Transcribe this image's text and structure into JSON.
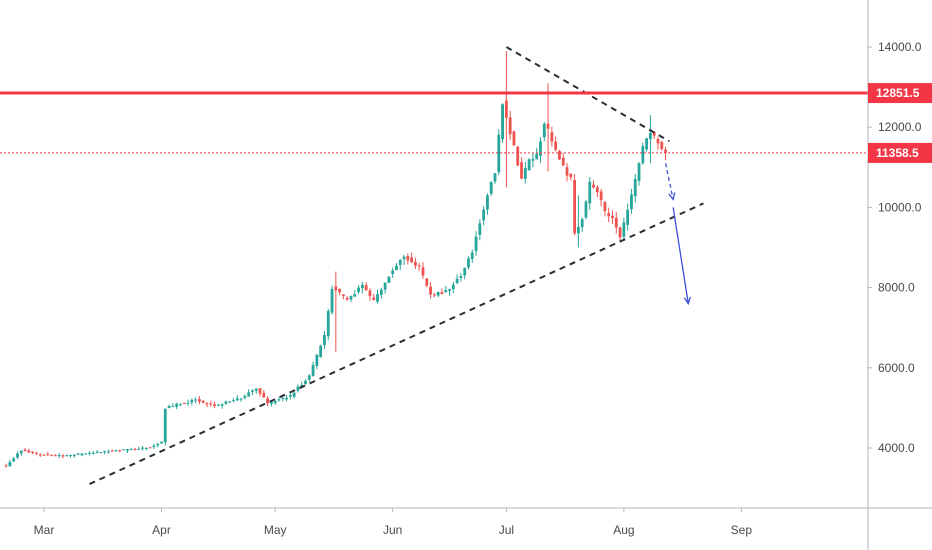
{
  "chart_data": {
    "type": "candlestick",
    "title": "",
    "xlabel": "",
    "ylabel": "",
    "ylim": [
      2200,
      15200
    ],
    "grid": false,
    "y_ticks": [
      {
        "label": "4000.0",
        "value": 4000
      },
      {
        "label": "6000.0",
        "value": 6000
      },
      {
        "label": "8000.0",
        "value": 8000
      },
      {
        "label": "10000.0",
        "value": 10000
      },
      {
        "label": "12000.0",
        "value": 12000
      },
      {
        "label": "14000.0",
        "value": 14000
      }
    ],
    "x_ticks": [
      {
        "label": "Mar",
        "day": 0
      },
      {
        "label": "Apr",
        "day": 31
      },
      {
        "label": "May",
        "day": 61
      },
      {
        "label": "Jun",
        "day": 92
      },
      {
        "label": "Jul",
        "day": 122
      },
      {
        "label": "Aug",
        "day": 153
      },
      {
        "label": "Sep",
        "day": 184
      }
    ],
    "candles_series": {
      "start_day": -10,
      "end_day": 164,
      "anchors": [
        {
          "day": -10,
          "value": 3550
        },
        {
          "day": -6,
          "value": 3950
        },
        {
          "day": -2,
          "value": 3850
        },
        {
          "day": 5,
          "value": 3800
        },
        {
          "day": 15,
          "value": 3900
        },
        {
          "day": 27,
          "value": 4000
        },
        {
          "day": 31,
          "value": 4150
        },
        {
          "day": 32,
          "value": 5000
        },
        {
          "day": 40,
          "value": 5200
        },
        {
          "day": 45,
          "value": 5050
        },
        {
          "day": 52,
          "value": 5250
        },
        {
          "day": 56,
          "value": 5500
        },
        {
          "day": 59,
          "value": 5100
        },
        {
          "day": 65,
          "value": 5300
        },
        {
          "day": 70,
          "value": 5800
        },
        {
          "day": 74,
          "value": 6800
        },
        {
          "day": 76,
          "value": 8000
        },
        {
          "day": 80,
          "value": 7700
        },
        {
          "day": 84,
          "value": 8050
        },
        {
          "day": 87,
          "value": 7650
        },
        {
          "day": 91,
          "value": 8300
        },
        {
          "day": 95,
          "value": 8800
        },
        {
          "day": 99,
          "value": 8500
        },
        {
          "day": 102,
          "value": 7800
        },
        {
          "day": 106,
          "value": 7900
        },
        {
          "day": 110,
          "value": 8300
        },
        {
          "day": 113,
          "value": 8900
        },
        {
          "day": 116,
          "value": 10000
        },
        {
          "day": 119,
          "value": 10900
        },
        {
          "day": 121,
          "value": 12600
        },
        {
          "day": 124,
          "value": 11500
        },
        {
          "day": 126,
          "value": 10700
        },
        {
          "day": 128,
          "value": 11200
        },
        {
          "day": 130,
          "value": 11300
        },
        {
          "day": 132,
          "value": 12100
        },
        {
          "day": 134,
          "value": 11700
        },
        {
          "day": 137,
          "value": 11000
        },
        {
          "day": 139,
          "value": 10700
        },
        {
          "day": 140,
          "value": 9400
        },
        {
          "day": 142,
          "value": 9700
        },
        {
          "day": 144,
          "value": 10600
        },
        {
          "day": 146,
          "value": 10400
        },
        {
          "day": 148,
          "value": 9900
        },
        {
          "day": 150,
          "value": 9700
        },
        {
          "day": 152,
          "value": 9300
        },
        {
          "day": 154,
          "value": 9900
        },
        {
          "day": 156,
          "value": 10700
        },
        {
          "day": 158,
          "value": 11500
        },
        {
          "day": 160,
          "value": 11900
        },
        {
          "day": 162,
          "value": 11600
        },
        {
          "day": 164,
          "value": 11358.5
        }
      ],
      "spikes": [
        {
          "day": 122,
          "high": 13900,
          "low": 10500
        },
        {
          "day": 133,
          "high": 13100,
          "low": 10900
        },
        {
          "day": 141,
          "high": 10300,
          "low": 9000
        },
        {
          "day": 160,
          "high": 12300,
          "low": 11100
        },
        {
          "day": 77,
          "high": 8400,
          "low": 6400
        }
      ],
      "up_color": "#26a69a",
      "down_color": "#ef5350"
    },
    "horizontal_levels": [
      {
        "value": 12851.5,
        "label": "12851.5",
        "color": "#f23645",
        "style": "solid"
      },
      {
        "value": 11358.5,
        "label": "11358.5",
        "color": "#f23645",
        "style": "dotted"
      }
    ],
    "trendlines": [
      {
        "name": "support",
        "from": {
          "day": 12,
          "value": 3100
        },
        "to": {
          "day": 174,
          "value": 10100
        },
        "color": "#2a2e39",
        "style": "dashed"
      },
      {
        "name": "resistance",
        "from": {
          "day": 122,
          "value": 14000
        },
        "to": {
          "day": 165,
          "value": 11650
        },
        "color": "#2a2e39",
        "style": "dashed"
      }
    ],
    "arrows": [
      {
        "from": {
          "day": 164,
          "value": 11100
        },
        "to": {
          "day": 166,
          "value": 10200
        },
        "color": "#3f51d9"
      },
      {
        "from": {
          "day": 166,
          "value": 10000
        },
        "to": {
          "day": 170,
          "value": 7600
        },
        "color": "#3f51d9"
      }
    ]
  }
}
